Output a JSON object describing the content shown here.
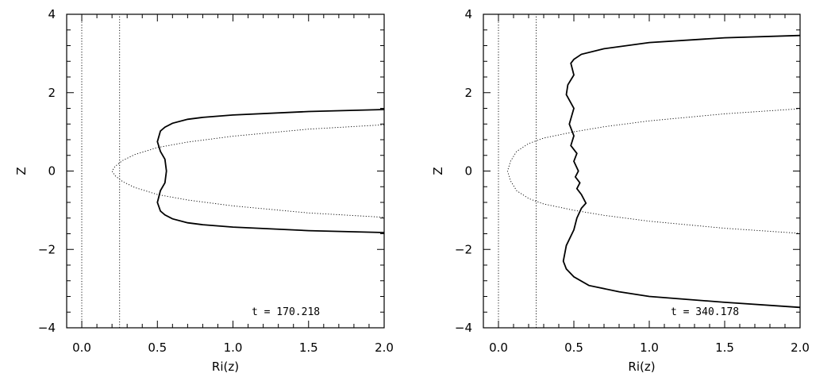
{
  "chart_data": [
    {
      "type": "line",
      "xlabel": "Ri(z)",
      "ylabel": "Z",
      "xlim": [
        -0.1,
        2.0
      ],
      "ylim": [
        -4,
        4
      ],
      "xticks": [
        "0.0",
        "0.5",
        "1.0",
        "1.5",
        "2.0"
      ],
      "yticks": [
        "−4",
        "−2",
        "0",
        "2",
        "4"
      ],
      "annotation": "t = 170.218",
      "grid": false,
      "series": [
        {
          "style": "solid",
          "x": [
            2.0,
            1.5,
            1.0,
            0.8,
            0.7,
            0.6,
            0.55,
            0.52,
            0.5,
            0.52,
            0.55,
            0.56,
            0.55,
            0.52,
            0.5,
            0.52,
            0.55,
            0.6,
            0.7,
            0.8,
            1.0,
            1.5,
            2.0
          ],
          "y": [
            1.57,
            1.52,
            1.43,
            1.37,
            1.32,
            1.22,
            1.12,
            1.02,
            0.75,
            0.5,
            0.3,
            0.0,
            -0.3,
            -0.5,
            -0.8,
            -1.02,
            -1.12,
            -1.22,
            -1.32,
            -1.37,
            -1.43,
            -1.52,
            -1.57
          ]
        },
        {
          "style": "dotted",
          "x": [
            2.0,
            1.5,
            1.0,
            0.7,
            0.5,
            0.35,
            0.27,
            0.22,
            0.2,
            0.22,
            0.27,
            0.35,
            0.5,
            0.7,
            1.0,
            1.5,
            2.0
          ],
          "y": [
            1.18,
            1.07,
            0.89,
            0.74,
            0.6,
            0.42,
            0.27,
            0.12,
            0.0,
            -0.12,
            -0.27,
            -0.42,
            -0.6,
            -0.74,
            -0.89,
            -1.07,
            -1.18
          ]
        },
        {
          "style": "dotted",
          "x": [
            0.0,
            0.0
          ],
          "y": [
            -4,
            4
          ]
        },
        {
          "style": "dotted",
          "x": [
            0.25,
            0.25
          ],
          "y": [
            -4,
            4
          ]
        }
      ]
    },
    {
      "type": "line",
      "xlabel": "Ri(z)",
      "ylabel": "Z",
      "xlim": [
        -0.1,
        2.0
      ],
      "ylim": [
        -4,
        4
      ],
      "xticks": [
        "0.0",
        "0.5",
        "1.0",
        "1.5",
        "2.0"
      ],
      "yticks": [
        "−4",
        "−2",
        "0",
        "2",
        "4"
      ],
      "annotation": "t = 340.178",
      "grid": false,
      "series": [
        {
          "style": "solid",
          "x": [
            2.0,
            1.5,
            1.0,
            0.7,
            0.55,
            0.5,
            0.48,
            0.5,
            0.46,
            0.45,
            0.5,
            0.47,
            0.5,
            0.48,
            0.52,
            0.5,
            0.53,
            0.51,
            0.54,
            0.52,
            0.55,
            0.58,
            0.55,
            0.52,
            0.5,
            0.45,
            0.43,
            0.45,
            0.5,
            0.6,
            0.8,
            1.0,
            1.5,
            2.0
          ],
          "y": [
            3.46,
            3.4,
            3.28,
            3.12,
            2.98,
            2.85,
            2.75,
            2.45,
            2.2,
            1.95,
            1.6,
            1.2,
            0.9,
            0.65,
            0.45,
            0.25,
            0.0,
            -0.15,
            -0.3,
            -0.45,
            -0.6,
            -0.82,
            -0.95,
            -1.2,
            -1.5,
            -1.9,
            -2.3,
            -2.5,
            -2.7,
            -2.92,
            -3.08,
            -3.2,
            -3.35,
            -3.48
          ]
        },
        {
          "style": "dotted",
          "x": [
            2.0,
            1.5,
            1.0,
            0.7,
            0.5,
            0.3,
            0.2,
            0.12,
            0.08,
            0.06,
            0.08,
            0.12,
            0.2,
            0.3,
            0.5,
            0.7,
            1.0,
            1.5,
            2.0
          ],
          "y": [
            1.59,
            1.46,
            1.28,
            1.13,
            1.0,
            0.84,
            0.7,
            0.5,
            0.25,
            0.0,
            -0.25,
            -0.5,
            -0.7,
            -0.84,
            -1.0,
            -1.13,
            -1.28,
            -1.46,
            -1.59
          ]
        },
        {
          "style": "dotted",
          "x": [
            0.0,
            0.0
          ],
          "y": [
            -4,
            4
          ]
        },
        {
          "style": "dotted",
          "x": [
            0.25,
            0.25
          ],
          "y": [
            -4,
            4
          ]
        }
      ]
    }
  ]
}
